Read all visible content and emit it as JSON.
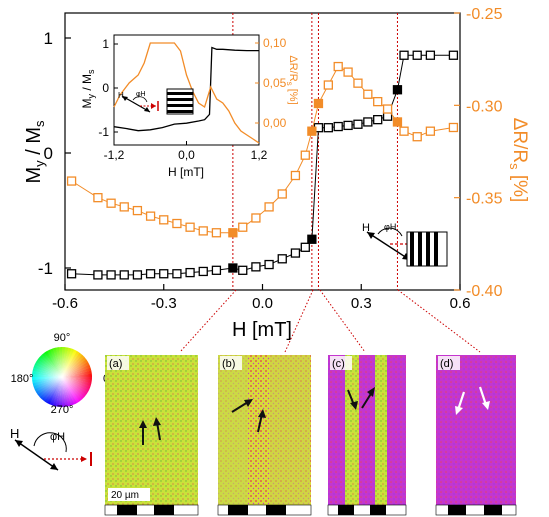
{
  "colors": {
    "black_series": "#000000",
    "orange_series": "#f28c28",
    "guide": "#cc0000"
  },
  "chart_data": [
    {
      "type": "line",
      "xlabel": "H [mT]",
      "ylabel_left": "My / Ms",
      "ylabel_right": "ΔR/Rs [%]",
      "xlim": [
        -0.6,
        0.6
      ],
      "ylim_left": [
        -1.2,
        1.2
      ],
      "ylim_right": [
        -0.4,
        -0.25
      ],
      "x_ticks": [
        "-0.6",
        "-0.3",
        "0.0",
        "0.3",
        "0.6"
      ],
      "y_left_ticks": [
        "1",
        "0",
        "-1"
      ],
      "y_right_ticks": [
        "-0.25",
        "-0.30",
        "-0.35",
        "-0.40"
      ],
      "vertical_markers": [
        -0.09,
        0.15,
        0.17,
        0.41
      ],
      "series": [
        {
          "axis": "left",
          "color": "#000000",
          "x": [
            -0.58,
            -0.5,
            -0.46,
            -0.42,
            -0.38,
            -0.34,
            -0.3,
            -0.26,
            -0.22,
            -0.18,
            -0.14,
            -0.09,
            -0.06,
            -0.02,
            0.02,
            0.06,
            0.1,
            0.13,
            0.15,
            0.17,
            0.2,
            0.23,
            0.26,
            0.29,
            0.32,
            0.35,
            0.38,
            0.41,
            0.43,
            0.47,
            0.51,
            0.58
          ],
          "y": [
            -1.05,
            -1.06,
            -1.06,
            -1.06,
            -1.06,
            -1.05,
            -1.05,
            -1.05,
            -1.04,
            -1.03,
            -1.02,
            -1.0,
            -1.02,
            -0.99,
            -0.97,
            -0.92,
            -0.87,
            -0.82,
            -0.75,
            0.22,
            0.22,
            0.23,
            0.24,
            0.25,
            0.27,
            0.29,
            0.32,
            0.55,
            0.85,
            0.85,
            0.85,
            0.85
          ]
        },
        {
          "axis": "right",
          "color": "#f28c28",
          "x": [
            -0.58,
            -0.5,
            -0.46,
            -0.42,
            -0.38,
            -0.34,
            -0.3,
            -0.26,
            -0.22,
            -0.18,
            -0.14,
            -0.09,
            -0.06,
            -0.02,
            0.02,
            0.06,
            0.1,
            0.13,
            0.15,
            0.17,
            0.2,
            0.23,
            0.26,
            0.29,
            0.32,
            0.35,
            0.38,
            0.41,
            0.43,
            0.47,
            0.51,
            0.58
          ],
          "y": [
            -0.341,
            -0.35,
            -0.353,
            -0.355,
            -0.357,
            -0.36,
            -0.362,
            -0.364,
            -0.366,
            -0.368,
            -0.369,
            -0.369,
            -0.366,
            -0.361,
            -0.355,
            -0.348,
            -0.338,
            -0.327,
            -0.314,
            -0.299,
            -0.289,
            -0.279,
            -0.282,
            -0.288,
            -0.294,
            -0.298,
            -0.302,
            -0.309,
            -0.314,
            -0.317,
            -0.314,
            -0.312
          ]
        }
      ]
    },
    {
      "type": "line",
      "xlabel": "H [mT]",
      "ylabel_left": "My / Ms",
      "ylabel_right": "ΔR/Rs [%]",
      "xlim": [
        -1.2,
        1.2
      ],
      "ylim_left": [
        -1.1,
        1.1
      ],
      "ylim_right": [
        -0.04,
        0.11
      ],
      "x_ticks": [
        "-1,2",
        "0,0",
        "1,2"
      ],
      "y_left_ticks": [
        "1",
        "0",
        "-1"
      ],
      "y_right_ticks": [
        "0,10",
        "0,05",
        "0,00"
      ],
      "series": [
        {
          "axis": "left",
          "color": "#000000",
          "x": [
            -1.2,
            -1.0,
            -0.8,
            -0.6,
            -0.4,
            -0.2,
            0.0,
            0.2,
            0.3,
            0.38,
            0.42,
            0.5,
            0.6,
            0.8,
            1.0,
            1.2
          ],
          "y": [
            -0.88,
            -0.92,
            -0.97,
            -0.95,
            -0.9,
            -0.82,
            -0.8,
            -0.75,
            -0.72,
            -0.6,
            0.92,
            0.88,
            0.88,
            0.86,
            0.85,
            0.85
          ]
        },
        {
          "axis": "right",
          "color": "#f28c28",
          "x": [
            -1.2,
            -1.1,
            -0.95,
            -0.8,
            -0.7,
            -0.6,
            -0.5,
            -0.4,
            -0.3,
            -0.2,
            -0.1,
            0.0,
            0.1,
            0.2,
            0.3,
            0.4,
            0.5,
            0.6,
            0.7,
            0.8,
            0.9,
            1.0,
            1.1,
            1.2
          ],
          "y": [
            0.02,
            0.035,
            0.05,
            0.06,
            0.075,
            0.1,
            0.1,
            0.1,
            0.1,
            0.1,
            0.09,
            0.06,
            0.04,
            0.025,
            0.02,
            0.045,
            0.03,
            0.025,
            0.015,
            0.0,
            -0.01,
            -0.015,
            -0.02,
            -0.025
          ]
        }
      ]
    }
  ],
  "legend_text": {
    "H": "H",
    "phi": "φH"
  },
  "color_wheel": {
    "top": "90°",
    "left": "180°",
    "right": "0°",
    "bottom": "270°"
  },
  "panels": [
    {
      "label": "(a)",
      "scale": "20 µm",
      "arrow_color": "#111111"
    },
    {
      "label": "(b)",
      "arrow_color": "#111111"
    },
    {
      "label": "(c)",
      "arrow_color": "#111111"
    },
    {
      "label": "(d)",
      "arrow_color": "#ffffff"
    }
  ]
}
